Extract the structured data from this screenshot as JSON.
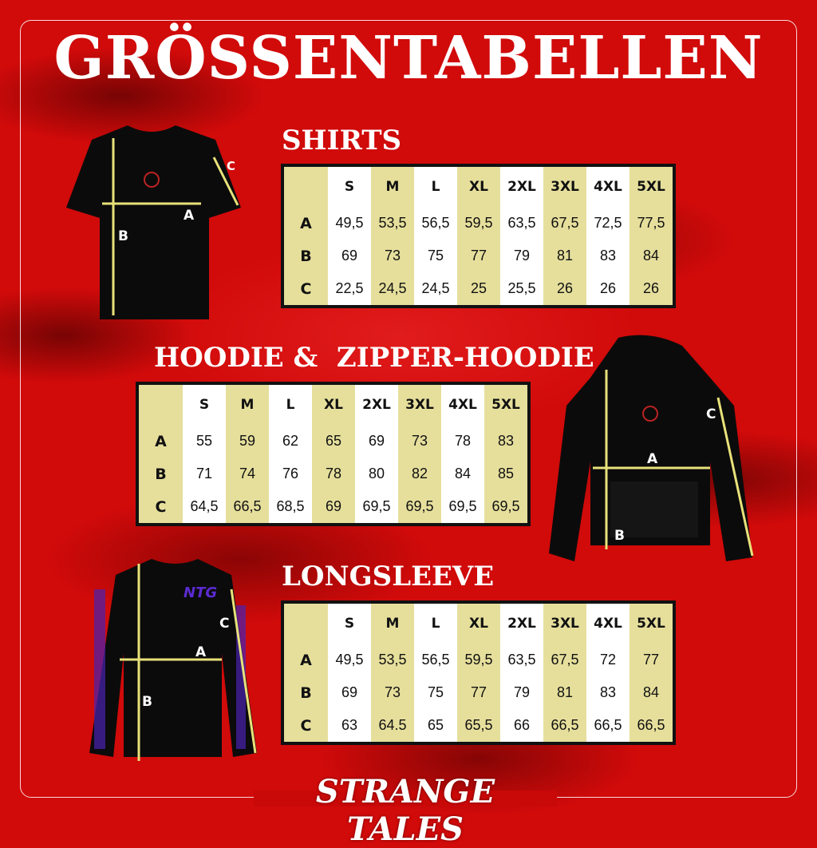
{
  "title": "GRÖSSENTABELLEN",
  "sizes": [
    "S",
    "M",
    "L",
    "XL",
    "2XL",
    "3XL",
    "4XL",
    "5XL"
  ],
  "colors": {
    "background": "#d10a0a",
    "table_yellow": "#e6df9c",
    "arrow": "#e8e27a"
  },
  "shirts": {
    "heading": "SHIRTS",
    "rows": [
      {
        "label": "A",
        "values": [
          "49,5",
          "53,5",
          "56,5",
          "59,5",
          "63,5",
          "67,5",
          "72,5",
          "77,5"
        ]
      },
      {
        "label": "B",
        "values": [
          "69",
          "73",
          "75",
          "77",
          "79",
          "81",
          "83",
          "84"
        ]
      },
      {
        "label": "C",
        "values": [
          "22,5",
          "24,5",
          "24,5",
          "25",
          "25,5",
          "26",
          "26",
          "26"
        ]
      }
    ]
  },
  "hoodie": {
    "heading": "HOODIE &  ZIPPER-HOODIE",
    "rows": [
      {
        "label": "A",
        "values": [
          "55",
          "59",
          "62",
          "65",
          "69",
          "73",
          "78",
          "83"
        ]
      },
      {
        "label": "B",
        "values": [
          "71",
          "74",
          "76",
          "78",
          "80",
          "82",
          "84",
          "85"
        ]
      },
      {
        "label": "C",
        "values": [
          "64,5",
          "66,5",
          "68,5",
          "69",
          "69,5",
          "69,5",
          "69,5",
          "69,5"
        ]
      }
    ]
  },
  "longsleeve": {
    "heading": "LONGSLEEVE",
    "rows": [
      {
        "label": "A",
        "values": [
          "49,5",
          "53,5",
          "56,5",
          "59,5",
          "63,5",
          "67,5",
          "72",
          "77"
        ]
      },
      {
        "label": "B",
        "values": [
          "69",
          "73",
          "75",
          "77",
          "79",
          "81",
          "83",
          "84"
        ]
      },
      {
        "label": "C",
        "values": [
          "63",
          "64.5",
          "65",
          "65,5",
          "66",
          "66,5",
          "66,5",
          "66,5"
        ]
      }
    ]
  },
  "measure_labels": {
    "a": "A",
    "b": "B",
    "c": "C"
  },
  "brand": "STRANGE TALES"
}
